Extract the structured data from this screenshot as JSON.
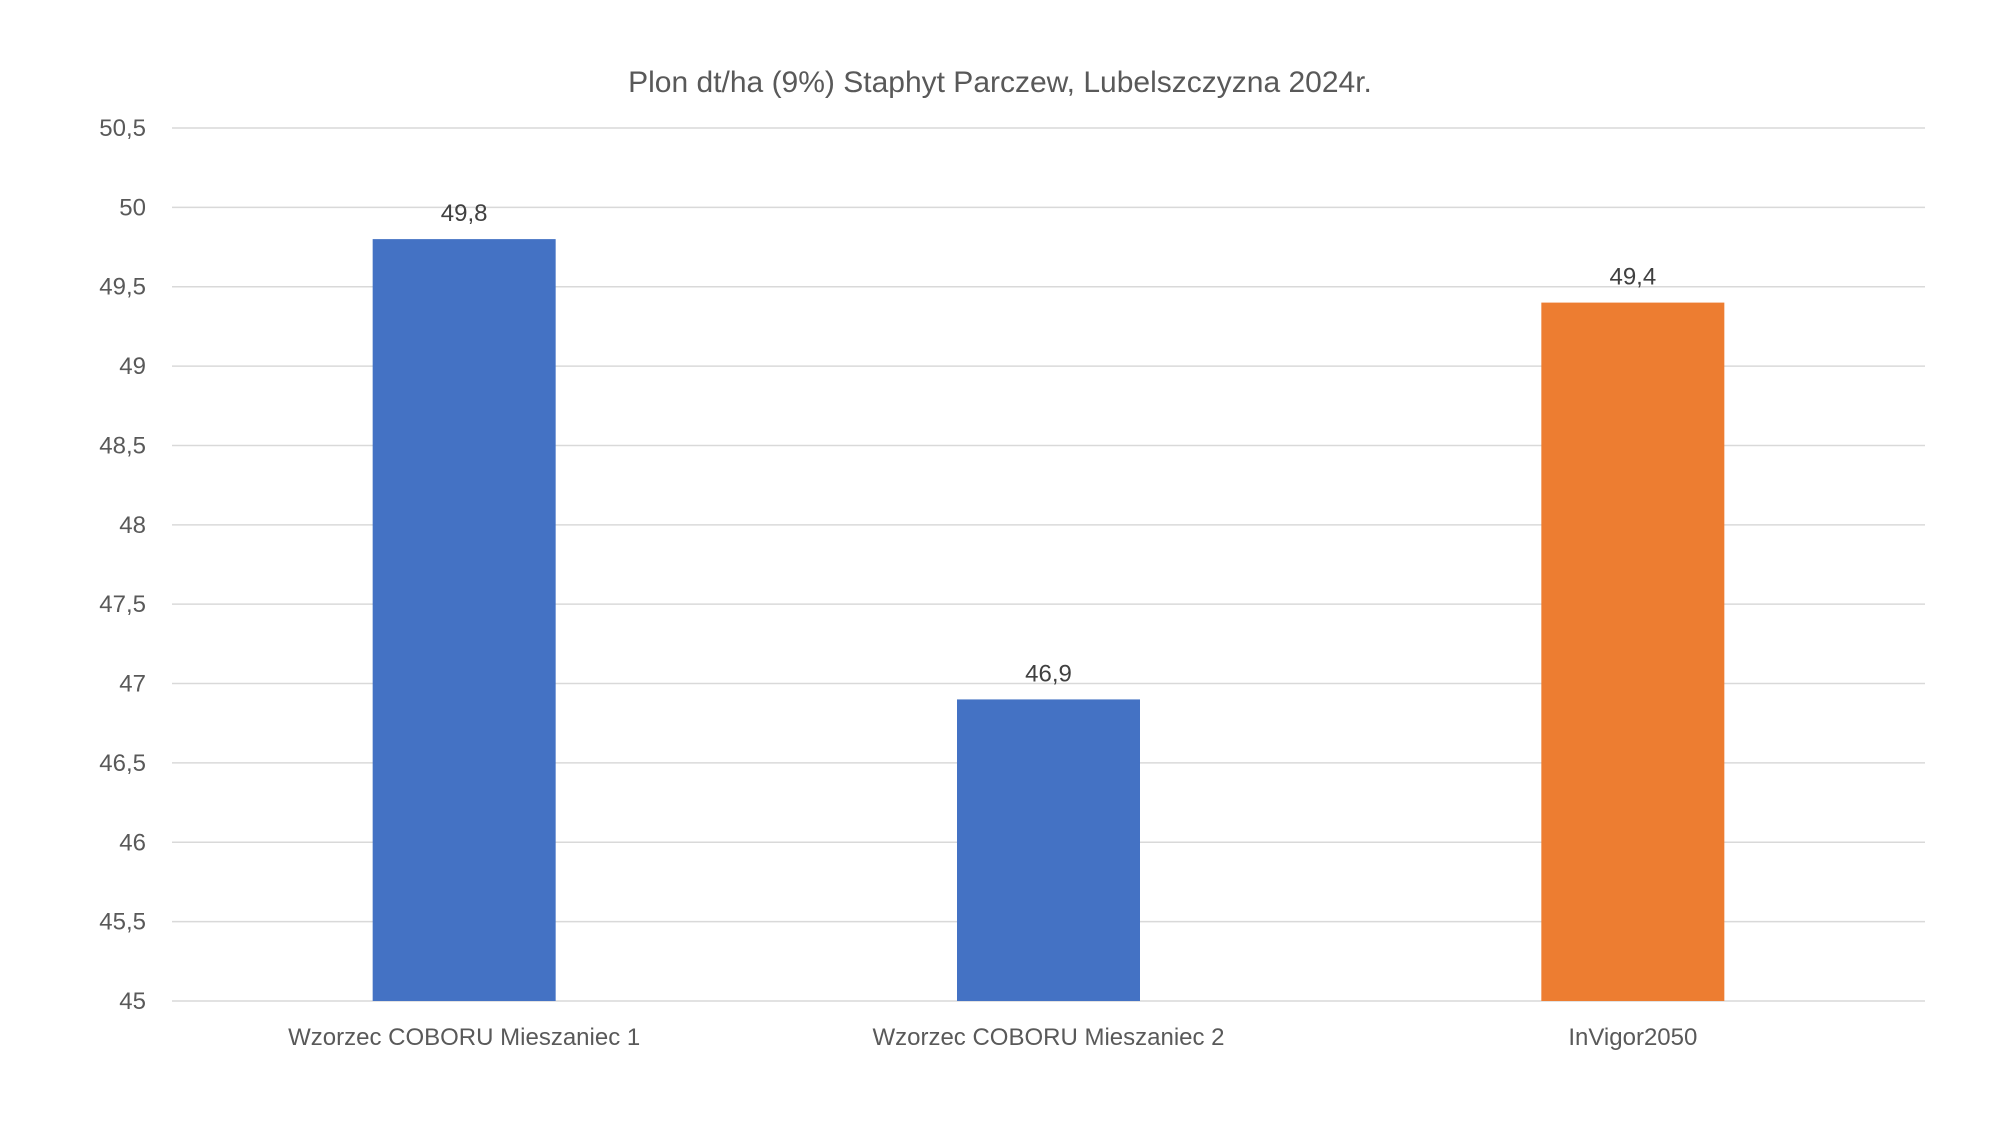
{
  "chart_data": {
    "type": "bar",
    "title": "Plon dt/ha (9%) Staphyt Parczew, Lubelszczyzna 2024r.",
    "xlabel": "",
    "ylabel": "",
    "categories": [
      "Wzorzec COBORU Mieszaniec 1",
      "Wzorzec COBORU Mieszaniec 2",
      "InVigor2050"
    ],
    "values": [
      49.8,
      46.9,
      49.4
    ],
    "data_labels": [
      "49,8",
      "46,9",
      "49,4"
    ],
    "bar_colors": [
      "#4472c4",
      "#4472c4",
      "#ed7d31"
    ],
    "ylim": [
      45,
      50.5
    ],
    "yticks": [
      45,
      45.5,
      46,
      46.5,
      47,
      47.5,
      48,
      48.5,
      49,
      49.5,
      50,
      50.5
    ],
    "ytick_labels": [
      "45",
      "45,5",
      "46",
      "46,5",
      "47",
      "47,5",
      "48",
      "48,5",
      "49",
      "49,5",
      "50",
      "50,5"
    ],
    "grid": true,
    "legend": "none"
  }
}
